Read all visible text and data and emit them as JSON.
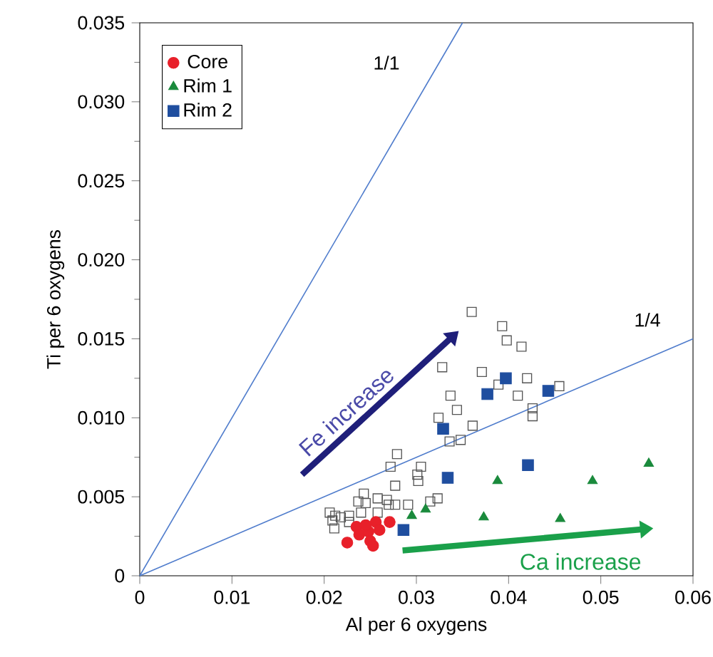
{
  "chart_data": {
    "type": "scatter",
    "xlabel": "Al per 6 oxygens",
    "ylabel": "Ti per 6 oxygens",
    "xlim": [
      0,
      0.06
    ],
    "ylim": [
      0,
      0.035
    ],
    "xticks": [
      0,
      0.01,
      0.02,
      0.03,
      0.04,
      0.05,
      0.06
    ],
    "yticks": [
      0,
      0.005,
      {
        "value": 0.01,
        "label": "0.010"
      },
      0.015,
      {
        "value": 0.02,
        "label": "0.020"
      },
      0.025,
      {
        "value": 0.03,
        "label": "0.030"
      },
      0.035
    ],
    "legend": "top left",
    "grid": false,
    "annotations": [
      "Fe increase",
      "Ca increase"
    ],
    "series": [
      {
        "type": "line",
        "name": "1/1",
        "color": "#4f7ccc",
        "marker": "none",
        "x": [
          0,
          0.035
        ],
        "values": [
          0,
          0.035
        ]
      },
      {
        "type": "line",
        "name": "1/4",
        "color": "#4f7ccc",
        "marker": "none",
        "x": [
          0,
          0.06
        ],
        "values": [
          0,
          0.015
        ]
      },
      {
        "color": "#555555",
        "marker": "square",
        "x": [
          0.036,
          0.0328,
          0.0371,
          0.0337,
          0.0344,
          0.0324,
          0.0361,
          0.0336,
          0.0348,
          0.0279,
          0.0272,
          0.0305,
          0.0301,
          0.0302,
          0.0277,
          0.0243,
          0.0237,
          0.0245,
          0.0258,
          0.0268,
          0.027,
          0.0277,
          0.0291,
          0.0315,
          0.0323,
          0.0206,
          0.0212,
          0.0218,
          0.0209,
          0.0211,
          0.0227,
          0.0227,
          0.024,
          0.0258,
          0.0393,
          0.0398,
          0.0414,
          0.0389,
          0.042,
          0.041,
          0.0455,
          0.0426,
          0.0426
        ],
        "values": [
          0.0167,
          0.0132,
          0.0129,
          0.0114,
          0.0105,
          0.01,
          0.0095,
          0.0085,
          0.0086,
          0.0077,
          0.0069,
          0.0069,
          0.0064,
          0.006,
          0.0057,
          0.0052,
          0.0047,
          0.0046,
          0.0049,
          0.0048,
          0.0045,
          0.0045,
          0.0045,
          0.0047,
          0.0049,
          0.004,
          0.0038,
          0.0037,
          0.0035,
          0.003,
          0.0038,
          0.0034,
          0.004,
          0.004,
          0.0158,
          0.0149,
          0.0145,
          0.0121,
          0.0125,
          0.0114,
          0.012,
          0.0106,
          0.0101
        ]
      },
      {
        "name": "Core",
        "color": "#e8202a",
        "marker": "circle",
        "x": [
          0.0225,
          0.0235,
          0.0238,
          0.0248,
          0.025,
          0.0253,
          0.0256,
          0.026,
          0.0271,
          0.0245
        ],
        "values": [
          0.0021,
          0.0031,
          0.0026,
          0.0028,
          0.0022,
          0.0019,
          0.0034,
          0.0029,
          0.0034,
          0.0032
        ]
      },
      {
        "name": "Rim 1",
        "color": "#1a8a3c",
        "marker": "triangle",
        "x": [
          0.0295,
          0.031,
          0.0373,
          0.0388,
          0.0456,
          0.0491,
          0.0552
        ],
        "values": [
          0.0038,
          0.0042,
          0.0037,
          0.006,
          0.0036,
          0.006,
          0.0071
        ]
      },
      {
        "name": "Rim 2",
        "color": "#1f4e9f",
        "marker": "square",
        "x": [
          0.0286,
          0.0329,
          0.0334,
          0.0377,
          0.0397,
          0.0443,
          0.0421
        ],
        "values": [
          0.0029,
          0.0093,
          0.0062,
          0.0115,
          0.0125,
          0.0117,
          0.007
        ]
      }
    ]
  }
}
